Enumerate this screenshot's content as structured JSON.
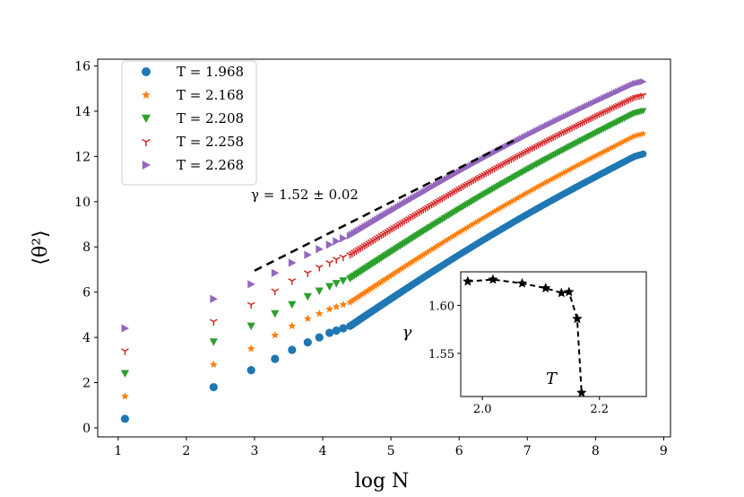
{
  "chart_data": {
    "type": "scatter",
    "title": "",
    "xlabel": "log N",
    "ylabel": "⟨θ²⟩",
    "xlim": [
      0.7,
      9.1
    ],
    "ylim": [
      -0.4,
      16.3
    ],
    "xticks": [
      "1",
      "2",
      "3",
      "4",
      "5",
      "6",
      "7",
      "8",
      "9"
    ],
    "yticks": [
      "0",
      "2",
      "4",
      "6",
      "8",
      "10",
      "12",
      "14",
      "16"
    ],
    "legend_position": "upper-left",
    "series": [
      {
        "name": "T = 1.968",
        "color": "#1f77b4",
        "marker": "circle",
        "first_points": [
          [
            1.1,
            0.4
          ],
          [
            2.4,
            1.8
          ],
          [
            2.95,
            2.55
          ],
          [
            3.3,
            3.05
          ],
          [
            3.55,
            3.45
          ],
          [
            3.78,
            3.78
          ],
          [
            3.95,
            4.0
          ],
          [
            4.1,
            4.2
          ],
          [
            4.2,
            4.3
          ],
          [
            4.3,
            4.4
          ]
        ],
        "dense_start": [
          4.4,
          4.5
        ],
        "curve_end": [
          8.7,
          12.2
        ]
      },
      {
        "name": "T = 2.168",
        "color": "#ff7f0e",
        "marker": "star",
        "first_points": [
          [
            1.1,
            1.4
          ],
          [
            2.4,
            2.8
          ],
          [
            2.95,
            3.5
          ],
          [
            3.3,
            4.1
          ],
          [
            3.55,
            4.5
          ],
          [
            3.78,
            4.83
          ],
          [
            3.95,
            5.05
          ],
          [
            4.1,
            5.25
          ],
          [
            4.2,
            5.35
          ],
          [
            4.3,
            5.45
          ]
        ],
        "dense_start": [
          4.4,
          5.55
        ],
        "curve_end": [
          8.7,
          13.1
        ]
      },
      {
        "name": "T = 2.208",
        "color": "#2ca02c",
        "marker": "triangle-down",
        "first_points": [
          [
            1.1,
            2.4
          ],
          [
            2.4,
            3.8
          ],
          [
            2.95,
            4.5
          ],
          [
            3.3,
            5.05
          ],
          [
            3.55,
            5.45
          ],
          [
            3.78,
            5.8
          ],
          [
            3.95,
            6.05
          ],
          [
            4.1,
            6.25
          ],
          [
            4.2,
            6.38
          ],
          [
            4.3,
            6.5
          ]
        ],
        "dense_start": [
          4.4,
          6.6
        ],
        "curve_end": [
          8.7,
          14.1
        ]
      },
      {
        "name": "T = 2.258",
        "color": "#d62728",
        "marker": "tri-down",
        "first_points": [
          [
            1.1,
            3.4
          ],
          [
            2.4,
            4.7
          ],
          [
            2.95,
            5.45
          ],
          [
            3.3,
            6.05
          ],
          [
            3.55,
            6.5
          ],
          [
            3.78,
            6.85
          ],
          [
            3.95,
            7.1
          ],
          [
            4.1,
            7.3
          ],
          [
            4.2,
            7.45
          ],
          [
            4.3,
            7.55
          ]
        ],
        "dense_start": [
          4.4,
          7.65
        ],
        "curve_end": [
          8.7,
          14.8
        ]
      },
      {
        "name": "T = 2.268",
        "color": "#9467bd",
        "marker": "triangle-right",
        "first_points": [
          [
            1.1,
            4.4
          ],
          [
            2.4,
            5.7
          ],
          [
            2.95,
            6.35
          ],
          [
            3.3,
            6.85
          ],
          [
            3.55,
            7.3
          ],
          [
            3.78,
            7.65
          ],
          [
            3.95,
            7.9
          ],
          [
            4.1,
            8.1
          ],
          [
            4.2,
            8.25
          ],
          [
            4.3,
            8.38
          ]
        ],
        "dense_start": [
          4.4,
          8.5
        ],
        "curve_end": [
          8.7,
          15.4
        ]
      }
    ],
    "reference_line": {
      "x": [
        3.0,
        6.8
      ],
      "y": [
        6.95,
        12.7
      ],
      "style": "dashed",
      "color": "#000000"
    },
    "annotation": "γ = 1.52 ± 0.02",
    "inset": {
      "type": "line",
      "xlabel": "T",
      "ylabel": "γ",
      "xlim": [
        1.963,
        2.28
      ],
      "ylim": [
        1.505,
        1.635
      ],
      "xticks": [
        "2.0",
        "2.2"
      ],
      "yticks": [
        "1.55",
        "1.60"
      ],
      "x": [
        1.975,
        2.018,
        2.068,
        2.108,
        2.135,
        2.148,
        2.162,
        2.1695
      ],
      "y": [
        1.625,
        1.627,
        1.623,
        1.618,
        1.613,
        1.614,
        1.586,
        1.509
      ],
      "marker": "star",
      "style": "dashed"
    }
  }
}
